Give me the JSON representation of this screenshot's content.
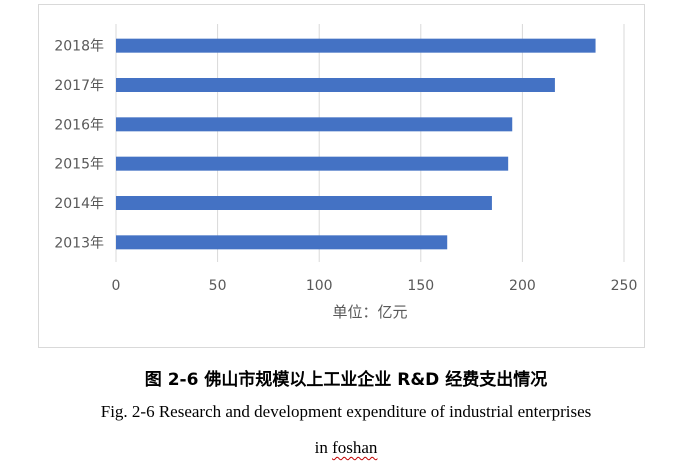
{
  "chart_data": {
    "type": "bar",
    "orientation": "horizontal",
    "categories": [
      "2018年",
      "2017年",
      "2016年",
      "2015年",
      "2014年",
      "2013年"
    ],
    "values": [
      236,
      216,
      195,
      193,
      185,
      163
    ],
    "xlim": [
      0,
      250
    ],
    "xticks": [
      "0",
      "50",
      "100",
      "150",
      "200",
      "250"
    ],
    "xlabel": "单位：亿元",
    "grid": "vertical",
    "bar_color": "#4472c4"
  },
  "caption": {
    "cn": "图 2-6 佛山市规模以上工业企业 R&D 经费支出情况",
    "en_line1": "Fig. 2-6 Research and development expenditure of industrial enterprises",
    "en_line2_prefix": "in ",
    "en_line2_word": "foshan"
  }
}
